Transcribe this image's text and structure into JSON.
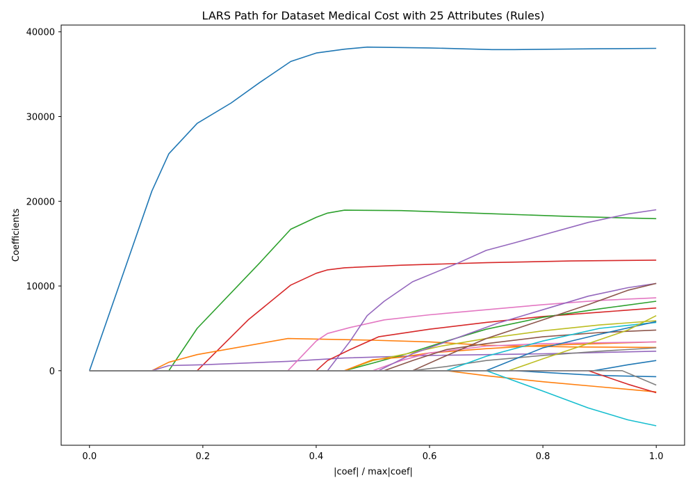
{
  "chart_data": {
    "type": "line",
    "title": "LARS Path for Dataset Medical Cost with 25 Attributes (Rules)",
    "xlabel": "|coef| / max|coef|",
    "ylabel": "Coefficients",
    "xlim": [
      -0.05,
      1.05
    ],
    "ylim": [
      -8800,
      40800
    ],
    "xticks": [
      0.0,
      0.2,
      0.4,
      0.6,
      0.8,
      1.0
    ],
    "xtick_labels": [
      "0.0",
      "0.2",
      "0.4",
      "0.6",
      "0.8",
      "1.0"
    ],
    "yticks": [
      0,
      10000,
      20000,
      30000,
      40000
    ],
    "ytick_labels": [
      "0",
      "10000",
      "20000",
      "30000",
      "40000"
    ],
    "grid": false,
    "legend": "none",
    "series": [
      {
        "color": "#1f77b4",
        "points": [
          [
            0,
            0
          ],
          [
            0.11,
            21200
          ],
          [
            0.14,
            25600
          ],
          [
            0.19,
            29200
          ],
          [
            0.25,
            31600
          ],
          [
            0.3,
            34000
          ],
          [
            0.355,
            36500
          ],
          [
            0.4,
            37500
          ],
          [
            0.45,
            37950
          ],
          [
            0.49,
            38200
          ],
          [
            0.6,
            38100
          ],
          [
            0.71,
            37900
          ],
          [
            0.75,
            37900
          ],
          [
            0.9,
            38000
          ],
          [
            1.0,
            38050
          ]
        ]
      },
      {
        "color": "#2ca02c",
        "points": [
          [
            0,
            0
          ],
          [
            0.14,
            0
          ],
          [
            0.19,
            5000
          ],
          [
            0.3,
            12700
          ],
          [
            0.355,
            16700
          ],
          [
            0.4,
            18100
          ],
          [
            0.42,
            18600
          ],
          [
            0.45,
            18950
          ],
          [
            0.55,
            18900
          ],
          [
            0.7,
            18550
          ],
          [
            0.85,
            18200
          ],
          [
            1.0,
            17950
          ]
        ]
      },
      {
        "color": "#d62728",
        "points": [
          [
            0,
            0
          ],
          [
            0.19,
            0
          ],
          [
            0.28,
            6000
          ],
          [
            0.355,
            10100
          ],
          [
            0.4,
            11500
          ],
          [
            0.42,
            11900
          ],
          [
            0.45,
            12150
          ],
          [
            0.55,
            12450
          ],
          [
            0.7,
            12750
          ],
          [
            0.85,
            12950
          ],
          [
            1.0,
            13050
          ]
        ]
      },
      {
        "color": "#ff7f0e",
        "points": [
          [
            0,
            0
          ],
          [
            0.11,
            0
          ],
          [
            0.14,
            1000
          ],
          [
            0.19,
            1900
          ],
          [
            0.35,
            3800
          ],
          [
            0.5,
            3600
          ],
          [
            0.6,
            3400
          ],
          [
            0.7,
            3000
          ],
          [
            0.85,
            2800
          ],
          [
            1.0,
            2750
          ]
        ]
      },
      {
        "color": "#9467bd",
        "points": [
          [
            0,
            0
          ],
          [
            0.11,
            0
          ],
          [
            0.14,
            600
          ],
          [
            0.2,
            700
          ],
          [
            0.35,
            1100
          ],
          [
            0.45,
            1500
          ],
          [
            0.6,
            1800
          ],
          [
            0.8,
            2000
          ],
          [
            1.0,
            2300
          ]
        ]
      },
      {
        "color": "#e377c2",
        "points": [
          [
            0,
            0
          ],
          [
            0.35,
            0
          ],
          [
            0.4,
            3500
          ],
          [
            0.42,
            4400
          ],
          [
            0.46,
            5100
          ],
          [
            0.52,
            6000
          ],
          [
            0.6,
            6600
          ],
          [
            0.7,
            7200
          ],
          [
            0.8,
            7800
          ],
          [
            0.9,
            8300
          ],
          [
            1.0,
            8600
          ]
        ]
      },
      {
        "color": "#9467bd",
        "points": [
          [
            0,
            0
          ],
          [
            0.42,
            0
          ],
          [
            0.46,
            3500
          ],
          [
            0.49,
            6500
          ],
          [
            0.52,
            8200
          ],
          [
            0.57,
            10500
          ],
          [
            0.65,
            12700
          ],
          [
            0.7,
            14200
          ],
          [
            0.75,
            15100
          ],
          [
            0.88,
            17500
          ],
          [
            0.95,
            18500
          ],
          [
            1.0,
            19000
          ]
        ]
      },
      {
        "color": "#d62728",
        "points": [
          [
            0,
            0
          ],
          [
            0.4,
            0
          ],
          [
            0.42,
            1200
          ],
          [
            0.46,
            2500
          ],
          [
            0.51,
            4000
          ],
          [
            0.6,
            4900
          ],
          [
            0.7,
            5700
          ],
          [
            0.8,
            6400
          ],
          [
            0.9,
            6900
          ],
          [
            1.0,
            7400
          ]
        ]
      },
      {
        "color": "#2ca02c",
        "points": [
          [
            0,
            0
          ],
          [
            0.45,
            0
          ],
          [
            0.5,
            900
          ],
          [
            0.56,
            2000
          ],
          [
            0.63,
            3500
          ],
          [
            0.7,
            4900
          ],
          [
            0.8,
            6300
          ],
          [
            0.9,
            7300
          ],
          [
            1.0,
            8200
          ]
        ]
      },
      {
        "color": "#bcbd22",
        "points": [
          [
            0,
            0
          ],
          [
            0.45,
            0
          ],
          [
            0.5,
            1200
          ],
          [
            0.56,
            2000
          ],
          [
            0.62,
            2900
          ],
          [
            0.7,
            3800
          ],
          [
            0.8,
            4700
          ],
          [
            0.9,
            5400
          ],
          [
            1.0,
            5900
          ]
        ]
      },
      {
        "color": "#ff7f0e",
        "points": [
          [
            0,
            0
          ],
          [
            0.45,
            0
          ],
          [
            0.5,
            1300
          ],
          [
            0.55,
            1600
          ],
          [
            0.6,
            2100
          ],
          [
            0.7,
            2600
          ],
          [
            0.8,
            3000
          ],
          [
            0.9,
            3200
          ],
          [
            1.0,
            3400
          ]
        ]
      },
      {
        "color": "#e377c2",
        "points": [
          [
            0,
            0
          ],
          [
            0.5,
            0
          ],
          [
            0.55,
            1200
          ],
          [
            0.6,
            2100
          ],
          [
            0.7,
            2900
          ],
          [
            0.8,
            3200
          ],
          [
            0.9,
            3300
          ],
          [
            1.0,
            3400
          ]
        ]
      },
      {
        "color": "#8c564b",
        "points": [
          [
            0,
            0
          ],
          [
            0.52,
            0
          ],
          [
            0.57,
            1200
          ],
          [
            0.63,
            2500
          ],
          [
            0.7,
            3200
          ],
          [
            0.8,
            4000
          ],
          [
            0.9,
            4500
          ],
          [
            1.0,
            4800
          ]
        ]
      },
      {
        "color": "#9467bd",
        "points": [
          [
            0,
            0
          ],
          [
            0.51,
            0
          ],
          [
            0.57,
            2000
          ],
          [
            0.65,
            3900
          ],
          [
            0.72,
            5600
          ],
          [
            0.8,
            7200
          ],
          [
            0.88,
            8800
          ],
          [
            0.95,
            9800
          ],
          [
            1.0,
            10300
          ]
        ]
      },
      {
        "color": "#8c564b",
        "points": [
          [
            0,
            0
          ],
          [
            0.57,
            0
          ],
          [
            0.62,
            1500
          ],
          [
            0.7,
            3800
          ],
          [
            0.8,
            6000
          ],
          [
            0.88,
            7800
          ],
          [
            0.95,
            9500
          ],
          [
            1.0,
            10300
          ]
        ]
      },
      {
        "color": "#7f7f7f",
        "points": [
          [
            0,
            0
          ],
          [
            0.57,
            0
          ],
          [
            0.63,
            500
          ],
          [
            0.7,
            1200
          ],
          [
            0.8,
            1800
          ],
          [
            0.9,
            2300
          ],
          [
            1.0,
            2700
          ]
        ]
      },
      {
        "color": "#17becf",
        "points": [
          [
            0,
            0
          ],
          [
            0.63,
            0
          ],
          [
            0.7,
            1700
          ],
          [
            0.8,
            3500
          ],
          [
            0.9,
            5000
          ],
          [
            1.0,
            5700
          ]
        ]
      },
      {
        "color": "#1f77b4",
        "points": [
          [
            0,
            0
          ],
          [
            0.7,
            0
          ],
          [
            0.8,
            2700
          ],
          [
            0.9,
            4300
          ],
          [
            1.0,
            5800
          ]
        ]
      },
      {
        "color": "#bcbd22",
        "points": [
          [
            0,
            0
          ],
          [
            0.74,
            0
          ],
          [
            0.8,
            1400
          ],
          [
            0.88,
            3200
          ],
          [
            0.95,
            4800
          ],
          [
            1.0,
            6500
          ]
        ]
      },
      {
        "color": "#ff7f0e",
        "points": [
          [
            0,
            0
          ],
          [
            0.63,
            0
          ],
          [
            0.7,
            -600
          ],
          [
            0.8,
            -1300
          ],
          [
            0.9,
            -1900
          ],
          [
            1.0,
            -2500
          ]
        ]
      },
      {
        "color": "#17becf",
        "points": [
          [
            0,
            0
          ],
          [
            0.7,
            0
          ],
          [
            0.75,
            -1200
          ],
          [
            0.8,
            -2400
          ],
          [
            0.88,
            -4400
          ],
          [
            0.95,
            -5800
          ],
          [
            1.0,
            -6500
          ]
        ]
      },
      {
        "color": "#1f77b4",
        "points": [
          [
            0,
            0
          ],
          [
            0.75,
            0
          ],
          [
            0.88,
            -500
          ],
          [
            0.92,
            -600
          ],
          [
            1.0,
            -700
          ]
        ]
      },
      {
        "color": "#1f77b4",
        "points": [
          [
            0,
            0
          ],
          [
            0.89,
            0
          ],
          [
            0.95,
            700
          ],
          [
            1.0,
            1200
          ]
        ]
      },
      {
        "color": "#d62728",
        "points": [
          [
            0,
            0
          ],
          [
            0.88,
            0
          ],
          [
            0.95,
            -1600
          ],
          [
            1.0,
            -2600
          ]
        ]
      },
      {
        "color": "#7f7f7f",
        "points": [
          [
            0,
            0
          ],
          [
            0.94,
            0
          ],
          [
            1.0,
            -1700
          ]
        ]
      }
    ]
  }
}
